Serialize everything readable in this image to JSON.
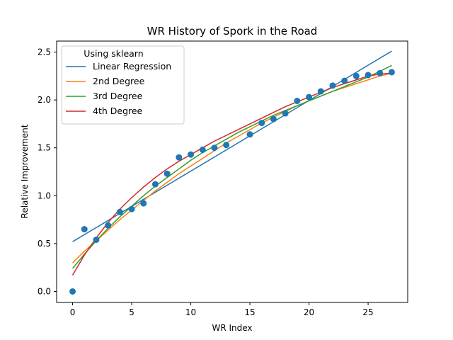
{
  "chart_data": {
    "type": "scatter",
    "title": "WR History of Spork in the Road",
    "xlabel": "WR Index",
    "ylabel": "Relative Improvement",
    "xlim": [
      -1.35,
      28.35
    ],
    "ylim": [
      -0.115,
      2.615
    ],
    "x_ticks": [
      0,
      5,
      10,
      15,
      20,
      25
    ],
    "x_tick_labels": [
      "0",
      "5",
      "10",
      "15",
      "20",
      "25"
    ],
    "y_ticks": [
      0.0,
      0.5,
      1.0,
      1.5,
      2.0,
      2.5
    ],
    "y_tick_labels": [
      "0.0",
      "0.5",
      "1.0",
      "1.5",
      "2.0",
      "2.5"
    ],
    "grid": false,
    "legend": {
      "title": "Using sklearn",
      "placement": "top-left",
      "entries": [
        "Linear Regression",
        "2nd Degree",
        "3rd Degree",
        "4th Degree"
      ]
    },
    "points": {
      "color": "#1f77b4",
      "x": [
        0,
        1,
        2,
        3,
        4,
        5,
        6,
        7,
        8,
        9,
        10,
        11,
        12,
        13,
        15,
        16,
        17,
        18,
        19,
        20,
        21,
        22,
        23,
        24,
        25,
        26,
        27
      ],
      "y": [
        0.0,
        0.65,
        0.54,
        0.69,
        0.83,
        0.86,
        0.92,
        1.12,
        1.23,
        1.4,
        1.43,
        1.48,
        1.5,
        1.53,
        1.64,
        1.76,
        1.8,
        1.86,
        1.99,
        2.03,
        2.09,
        2.15,
        2.2,
        2.25,
        2.26,
        2.28,
        2.29
      ]
    },
    "series": [
      {
        "name": "Linear Regression",
        "color": "#1f77b4",
        "x": [
          0,
          27
        ],
        "y": [
          0.52,
          2.51
        ]
      },
      {
        "name": "2nd Degree",
        "color": "#ff7f0e",
        "x": [
          0,
          1,
          2,
          3,
          4,
          5,
          6,
          7,
          8,
          9,
          10,
          11,
          12,
          13,
          14,
          15,
          16,
          17,
          18,
          19,
          20,
          21,
          22,
          23,
          24,
          25,
          26,
          27
        ],
        "y": [
          0.3,
          0.42,
          0.53,
          0.64,
          0.75,
          0.85,
          0.95,
          1.05,
          1.14,
          1.23,
          1.31,
          1.39,
          1.47,
          1.55,
          1.62,
          1.69,
          1.76,
          1.82,
          1.88,
          1.94,
          1.99,
          2.04,
          2.09,
          2.13,
          2.17,
          2.21,
          2.25,
          2.28
        ]
      },
      {
        "name": "3rd Degree",
        "color": "#2ca02c",
        "x": [
          0,
          1,
          2,
          3,
          4,
          5,
          6,
          7,
          8,
          9,
          10,
          11,
          12,
          13,
          14,
          15,
          16,
          17,
          18,
          19,
          20,
          21,
          22,
          23,
          24,
          25,
          26,
          27
        ],
        "y": [
          0.24,
          0.39,
          0.53,
          0.66,
          0.78,
          0.89,
          1.0,
          1.1,
          1.19,
          1.28,
          1.37,
          1.45,
          1.52,
          1.59,
          1.66,
          1.72,
          1.78,
          1.84,
          1.89,
          1.94,
          1.99,
          2.04,
          2.09,
          2.14,
          2.19,
          2.24,
          2.3,
          2.36
        ]
      },
      {
        "name": "4th Degree",
        "color": "#d62728",
        "x": [
          0,
          1,
          2,
          3,
          4,
          5,
          6,
          7,
          8,
          9,
          10,
          11,
          12,
          13,
          14,
          15,
          16,
          17,
          18,
          19,
          20,
          21,
          22,
          23,
          24,
          25,
          26,
          27
        ],
        "y": [
          0.17,
          0.38,
          0.56,
          0.72,
          0.86,
          0.98,
          1.09,
          1.19,
          1.28,
          1.36,
          1.43,
          1.5,
          1.57,
          1.63,
          1.69,
          1.75,
          1.81,
          1.87,
          1.93,
          1.98,
          2.03,
          2.08,
          2.13,
          2.17,
          2.21,
          2.25,
          2.27,
          2.28
        ]
      }
    ]
  }
}
